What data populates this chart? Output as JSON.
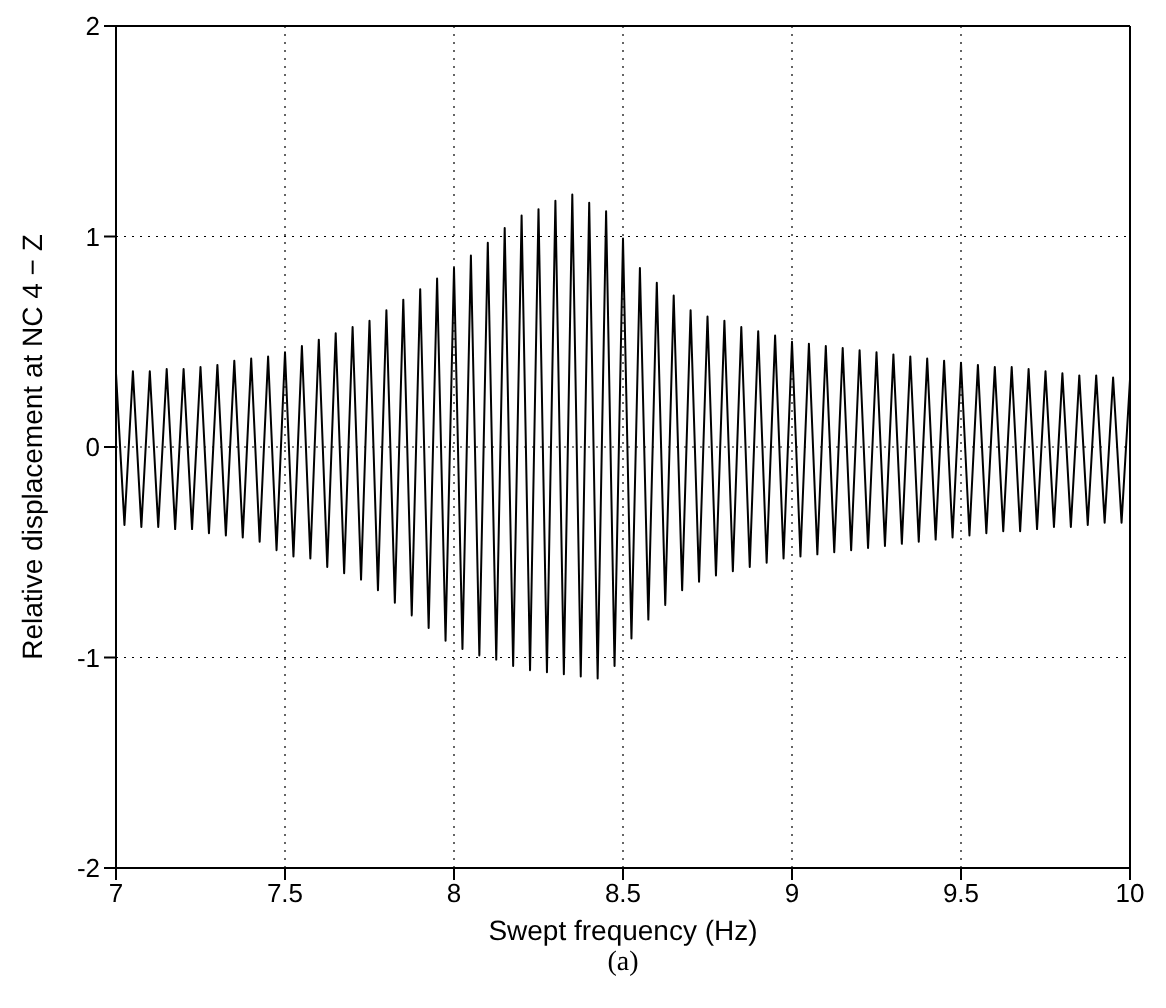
{
  "chart_data": {
    "type": "line",
    "xlabel": "Swept frequency (Hz)",
    "ylabel": "Relative displacement at NC 4 − Z",
    "annotations": [
      "(a)"
    ],
    "color": "#000000",
    "grid": true,
    "xlim": [
      7,
      10
    ],
    "ylim": [
      -2,
      2
    ],
    "xticks": [
      7,
      7.5,
      8,
      8.5,
      9,
      9.5,
      10
    ],
    "yticks": [
      -2,
      -1,
      0,
      1,
      2
    ],
    "x": [
      7,
      7.025,
      7.05,
      7.075,
      7.1,
      7.125,
      7.15,
      7.175,
      7.2,
      7.225,
      7.25,
      7.275,
      7.3,
      7.325,
      7.35,
      7.375,
      7.4,
      7.425,
      7.45,
      7.475,
      7.5,
      7.525,
      7.55,
      7.575,
      7.6,
      7.625,
      7.65,
      7.675,
      7.7,
      7.725,
      7.75,
      7.775,
      7.8,
      7.825,
      7.85,
      7.875,
      7.9,
      7.925,
      7.95,
      7.975,
      8,
      8.025,
      8.05,
      8.075,
      8.1,
      8.125,
      8.15,
      8.175,
      8.2,
      8.225,
      8.25,
      8.275,
      8.3,
      8.325,
      8.35,
      8.375,
      8.4,
      8.425,
      8.45,
      8.475,
      8.5,
      8.525,
      8.55,
      8.575,
      8.6,
      8.625,
      8.65,
      8.675,
      8.7,
      8.725,
      8.75,
      8.775,
      8.8,
      8.825,
      8.85,
      8.875,
      8.9,
      8.925,
      8.95,
      8.975,
      9,
      9.025,
      9.05,
      9.075,
      9.1,
      9.125,
      9.15,
      9.175,
      9.2,
      9.225,
      9.25,
      9.275,
      9.3,
      9.325,
      9.35,
      9.375,
      9.4,
      9.425,
      9.45,
      9.475,
      9.5,
      9.525,
      9.55,
      9.575,
      9.6,
      9.625,
      9.65,
      9.675,
      9.7,
      9.725,
      9.75,
      9.775,
      9.8,
      9.825,
      9.85,
      9.875,
      9.9,
      9.925,
      9.95,
      9.975,
      10
    ],
    "values": [
      0.35,
      -0.37,
      0.36,
      -0.38,
      0.36,
      -0.38,
      0.37,
      -0.39,
      0.37,
      -0.39,
      0.38,
      -0.41,
      0.39,
      -0.42,
      0.41,
      -0.43,
      0.42,
      -0.45,
      0.43,
      -0.49,
      0.45,
      -0.52,
      0.48,
      -0.53,
      0.51,
      -0.57,
      0.54,
      -0.6,
      0.57,
      -0.63,
      0.6,
      -0.68,
      0.65,
      -0.74,
      0.7,
      -0.8,
      0.75,
      -0.86,
      0.8,
      -0.92,
      0.85,
      -0.96,
      0.91,
      -0.99,
      0.97,
      -1.01,
      1.04,
      -1.04,
      1.1,
      -1.06,
      1.13,
      -1.07,
      1.17,
      -1.08,
      1.2,
      -1.09,
      1.16,
      -1.1,
      1.12,
      -1.04,
      0.99,
      -0.91,
      0.85,
      -0.82,
      0.78,
      -0.75,
      0.72,
      -0.68,
      0.65,
      -0.64,
      0.62,
      -0.61,
      0.6,
      -0.59,
      0.57,
      -0.57,
      0.55,
      -0.55,
      0.53,
      -0.53,
      0.5,
      -0.52,
      0.49,
      -0.51,
      0.48,
      -0.5,
      0.47,
      -0.49,
      0.46,
      -0.48,
      0.45,
      -0.47,
      0.44,
      -0.46,
      0.43,
      -0.45,
      0.42,
      -0.44,
      0.41,
      -0.43,
      0.4,
      -0.42,
      0.39,
      -0.41,
      0.38,
      -0.4,
      0.38,
      -0.4,
      0.37,
      -0.39,
      0.36,
      -0.38,
      0.35,
      -0.38,
      0.34,
      -0.37,
      0.34,
      -0.36,
      0.33,
      -0.36,
      0.32
    ]
  }
}
